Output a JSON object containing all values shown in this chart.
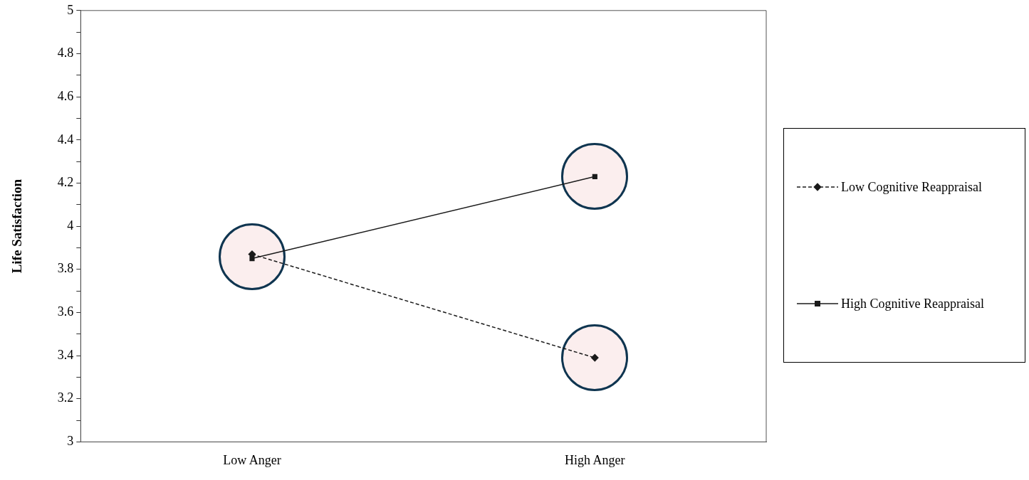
{
  "chart_data": {
    "type": "line",
    "ylabel": "Life Satisfaction",
    "categories": [
      "Low Anger",
      "High Anger"
    ],
    "series": [
      {
        "name": "Low Cognitive Reappraisal",
        "color": "#1a1a1a",
        "values": [
          3.87,
          3.39
        ],
        "marker": "diamond",
        "line_style": "dashed"
      },
      {
        "name": "High Cognitive Reappraisal",
        "color": "#1a1a1a",
        "values": [
          3.85,
          4.23
        ],
        "marker": "square",
        "line_style": "solid"
      }
    ],
    "ylim": [
      3,
      5
    ],
    "yticks": [
      3,
      {
        "value": 3.1,
        "label": null
      },
      3.2,
      {
        "value": 3.3,
        "label": null
      },
      3.4,
      {
        "value": 3.5,
        "label": null
      },
      3.6,
      {
        "value": 3.7,
        "label": null
      },
      3.8,
      {
        "value": 3.9,
        "label": null
      },
      4,
      {
        "value": 4.1,
        "label": null
      },
      4.2,
      {
        "value": 4.3,
        "label": null
      },
      4.4,
      {
        "value": 4.5,
        "label": null
      },
      4.6,
      {
        "value": 4.7,
        "label": null
      },
      4.8,
      {
        "value": 4.9,
        "label": null
      },
      5
    ],
    "grid": false,
    "legend": "right"
  }
}
